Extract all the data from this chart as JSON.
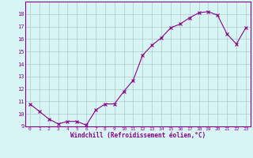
{
  "x": [
    0,
    1,
    2,
    3,
    4,
    5,
    6,
    7,
    8,
    9,
    10,
    11,
    12,
    13,
    14,
    15,
    16,
    17,
    18,
    19,
    20,
    21,
    22,
    23
  ],
  "y": [
    10.8,
    10.2,
    9.6,
    9.2,
    9.4,
    9.4,
    9.1,
    10.3,
    10.8,
    10.8,
    11.8,
    12.7,
    14.7,
    15.5,
    16.1,
    16.9,
    17.2,
    17.7,
    18.1,
    18.2,
    17.9,
    16.4,
    15.6,
    16.9
  ],
  "xlabel": "Windchill (Refroidissement éolien,°C)",
  "ylim": [
    9,
    19
  ],
  "xlim": [
    -0.5,
    23.5
  ],
  "yticks": [
    9,
    10,
    11,
    12,
    13,
    14,
    15,
    16,
    17,
    18
  ],
  "xticks": [
    0,
    1,
    2,
    3,
    4,
    5,
    6,
    7,
    8,
    9,
    10,
    11,
    12,
    13,
    14,
    15,
    16,
    17,
    18,
    19,
    20,
    21,
    22,
    23
  ],
  "line_color": "#880088",
  "marker": "x",
  "bg_color": "#d8f5f5",
  "grid_color": "#b0c8c8",
  "axis_label_color": "#880088",
  "tick_color": "#880088",
  "border_color": "#880088"
}
